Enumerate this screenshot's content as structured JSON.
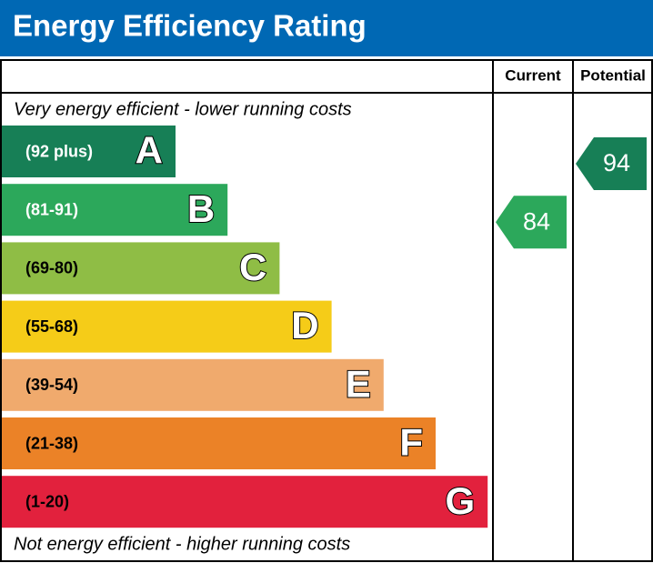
{
  "chart_data": {
    "type": "epc",
    "title": "Energy Efficiency Rating",
    "columns": [
      "Current",
      "Potential"
    ],
    "top_note": "Very energy efficient - lower running costs",
    "bottom_note": "Not energy efficient - higher running costs",
    "bands": [
      {
        "range": "(92 plus)",
        "letter": "A",
        "color": "#177f56",
        "text_color": "#ffffff"
      },
      {
        "range": "(81-91)",
        "letter": "B",
        "color": "#2ca85b",
        "text_color": "#ffffff"
      },
      {
        "range": "(69-80)",
        "letter": "C",
        "color": "#8fbd45",
        "text_color": "#000000"
      },
      {
        "range": "(55-68)",
        "letter": "D",
        "color": "#f5cc18",
        "text_color": "#000000"
      },
      {
        "range": "(39-54)",
        "letter": "E",
        "color": "#f0aa6d",
        "text_color": "#000000"
      },
      {
        "range": "(21-38)",
        "letter": "F",
        "color": "#eb8227",
        "text_color": "#000000"
      },
      {
        "range": "(1-20)",
        "letter": "G",
        "color": "#e2213d",
        "text_color": "#000000"
      }
    ],
    "current": 84,
    "potential": 94
  }
}
